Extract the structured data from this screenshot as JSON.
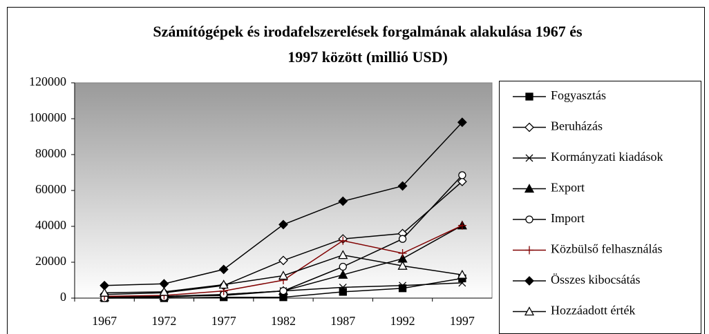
{
  "chart_data": {
    "type": "line",
    "title": [
      "Számítógépek és irodafelszerelések forgalmának alakulása 1967 és",
      "1997 között (millió USD)"
    ],
    "categories": [
      "1967",
      "1972",
      "1977",
      "1982",
      "1987",
      "1992",
      "1997"
    ],
    "series": [
      {
        "name": "Fogyasztás",
        "color": "#000000",
        "marker": "square-filled",
        "values": [
          0,
          0,
          500,
          500,
          3500,
          5500,
          11000
        ]
      },
      {
        "name": "Beruházás",
        "color": "#000000",
        "marker": "diamond-open",
        "values": [
          2000,
          3000,
          7000,
          21000,
          33000,
          36000,
          65000
        ]
      },
      {
        "name": "Kormányzati kiadások",
        "color": "#000000",
        "marker": "cross",
        "values": [
          1000,
          1000,
          1500,
          4000,
          6000,
          7000,
          8500
        ]
      },
      {
        "name": "Export",
        "color": "#000000",
        "marker": "triangle-filled",
        "values": [
          500,
          1000,
          2000,
          4000,
          13000,
          22000,
          40500
        ]
      },
      {
        "name": "Import",
        "color": "#000000",
        "marker": "circle-open",
        "values": [
          0,
          500,
          2000,
          4000,
          17500,
          33000,
          68500
        ]
      },
      {
        "name": "Közbülső felhasználás",
        "color": "#800000",
        "marker": "plus",
        "values": [
          1000,
          1500,
          4000,
          10000,
          32000,
          25000,
          40500
        ]
      },
      {
        "name": "Összes kibocsátás",
        "color": "#000000",
        "marker": "diamond-filled",
        "values": [
          7000,
          8000,
          16000,
          41000,
          54000,
          62500,
          98000
        ]
      },
      {
        "name": "Hozzáadott érték",
        "color": "#000000",
        "marker": "triangle-open",
        "values": [
          3000,
          3500,
          7500,
          12500,
          24000,
          18000,
          13000
        ]
      }
    ],
    "ylim": [
      0,
      120000
    ],
    "yticks": [
      0,
      20000,
      40000,
      60000,
      80000,
      100000,
      120000
    ],
    "grid": false,
    "legend": "right"
  }
}
